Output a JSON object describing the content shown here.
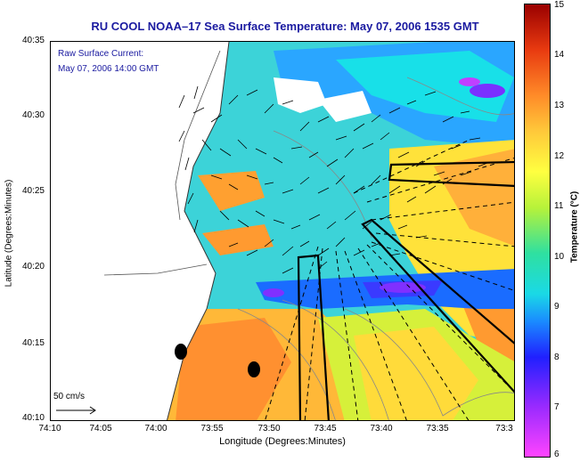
{
  "title": "RU COOL  NOAA–17  Sea Surface Temperature:  May 07, 2006 1535 GMT",
  "legend": {
    "line1": "Raw Surface Current:",
    "line2": "May 07, 2006 14:00 GMT"
  },
  "scale_label": "50 cm/s",
  "axes": {
    "xlabel": "Longitude (Degrees:Minutes)",
    "ylabel": "Latitude (Degrees:Minutes)",
    "x_ticks": [
      "74:10",
      "74:05",
      "74:00",
      "73:55",
      "73:50",
      "73:45",
      "73:40",
      "73:35",
      "73:3"
    ],
    "y_ticks": [
      "40:35",
      "40:30",
      "40:25",
      "40:20",
      "40:15",
      "40:10"
    ]
  },
  "colorbar": {
    "label": "Temperature (°C)",
    "ticks": [
      "15",
      "14",
      "13",
      "12",
      "11",
      "10",
      "9",
      "8",
      "7",
      "6"
    ],
    "min": 6,
    "max": 15
  },
  "colors": {
    "title": "#1a1aa0",
    "land": "#ffffff",
    "warm": "#ff8a28",
    "cool": "#1a8cff"
  }
}
